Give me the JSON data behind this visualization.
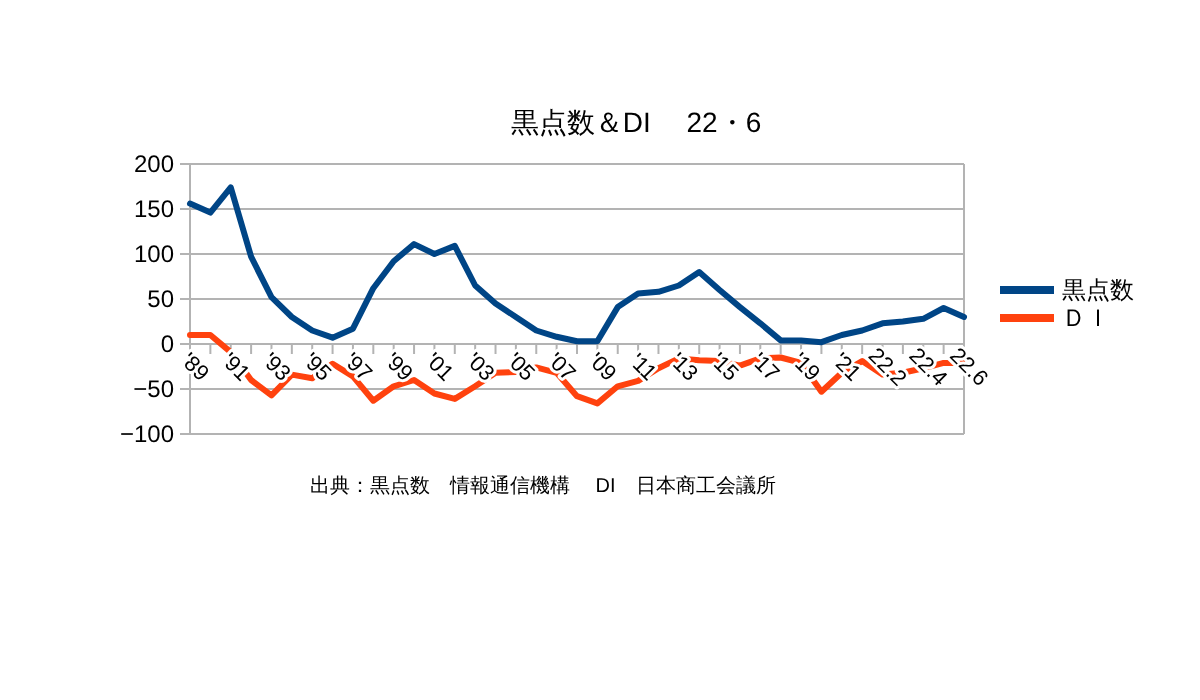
{
  "chart_data": {
    "type": "line",
    "title": "黒点数＆DI　 22・6",
    "categories": [
      "'89",
      null,
      "'91",
      null,
      "'93",
      null,
      "'95",
      null,
      "'97",
      null,
      "'99",
      null,
      "'01",
      null,
      "'03",
      null,
      "'05",
      null,
      "'07",
      null,
      "'09",
      null,
      "'11",
      null,
      "'13",
      null,
      "'15",
      null,
      "'17",
      null,
      "'19",
      null,
      "'21",
      null,
      "22.2",
      null,
      "22.4",
      null,
      "22.6"
    ],
    "series": [
      {
        "name": "黒点数",
        "color": "#004586",
        "values": [
          156,
          146,
          174,
          97,
          52,
          30,
          15,
          7,
          17,
          62,
          92,
          111,
          100,
          109,
          65,
          45,
          30,
          15,
          8,
          3,
          3,
          41,
          56,
          58,
          65,
          80,
          60,
          41,
          23,
          4,
          4,
          2,
          10,
          15,
          23,
          25,
          28,
          40,
          30
        ]
      },
      {
        "name": "ＤＩ",
        "color": "#ff420e",
        "values": [
          10,
          10,
          -9,
          -40,
          -57,
          -34,
          -38,
          -22,
          -36,
          -63,
          -47,
          -40,
          -55,
          -61,
          -47,
          -32,
          -31,
          -26,
          -32,
          -58,
          -66,
          -47,
          -41,
          -27,
          -16,
          -18,
          -19,
          -24,
          -16,
          -15,
          -21,
          -53,
          -32,
          -19,
          -34,
          -32,
          -27,
          -21,
          -21
        ]
      }
    ],
    "ylim": [
      -100,
      200
    ],
    "yticks": [
      -100,
      -50,
      0,
      50,
      100,
      150,
      200
    ],
    "grid": "y",
    "legend": "right",
    "annotations": [
      "出典：黒点数　情報通信機構　 DI　日本商工会議所"
    ]
  }
}
